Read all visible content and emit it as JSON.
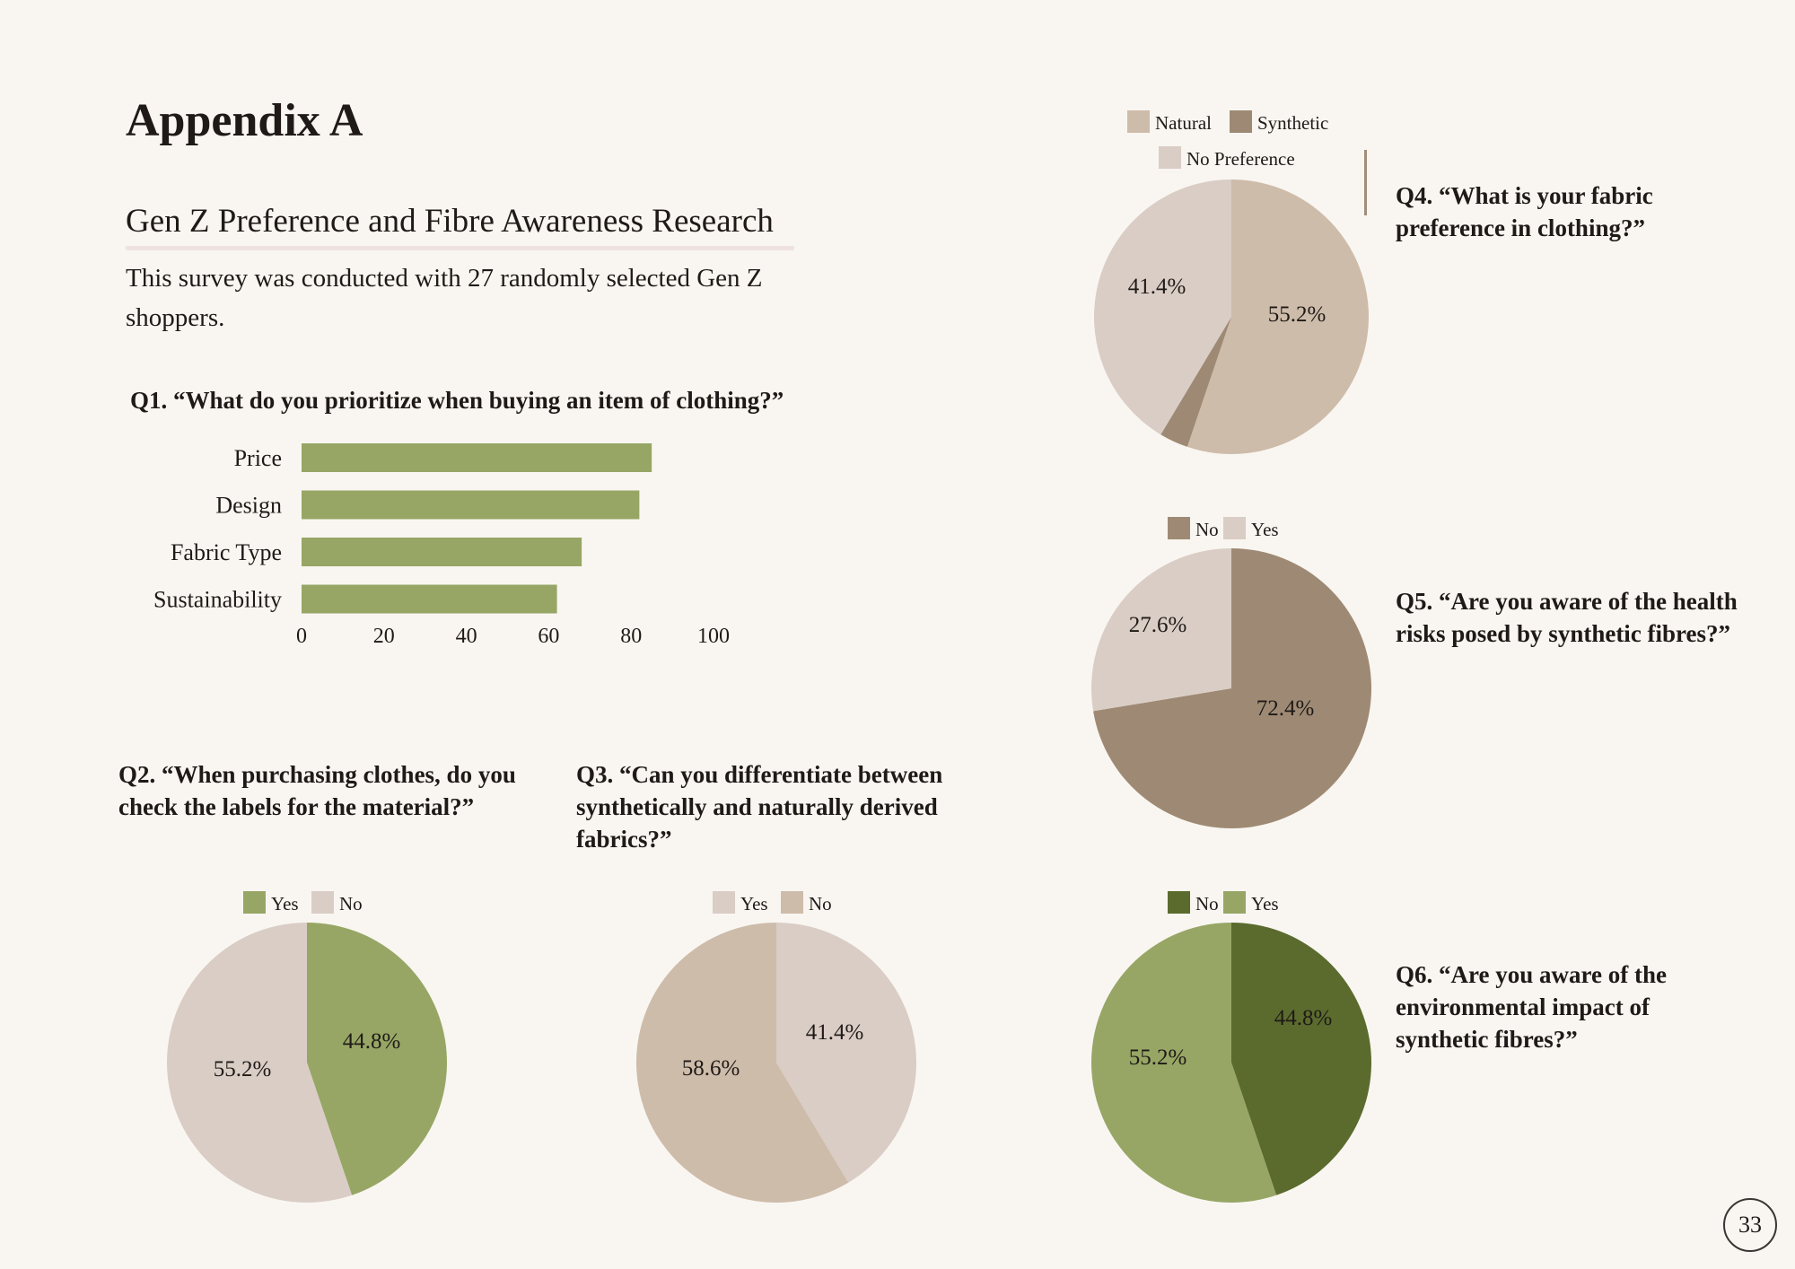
{
  "page": {
    "title": "Appendix A",
    "subtitle": "Gen Z Preference and Fibre Awareness Research",
    "intro": "This survey was conducted with 27 randomly selected Gen Z shoppers.",
    "page_number": "33"
  },
  "questions": {
    "q1": "Q1. “What do you prioritize when buying an item of clothing?”",
    "q2": "Q2. “When purchasing clothes, do you check the labels for the material?”",
    "q3": "Q3. “Can you differentiate between synthetically and naturally derived fabrics?”",
    "q4": "Q4. “What is your fabric preference in clothing?”",
    "q5": "Q5. “Are you aware of the health risks posed by synthetic fibres?”",
    "q6": "Q6. “Are you aware of the environmental impact of synthetic fibres?”"
  },
  "chart_data": [
    {
      "id": "q1",
      "type": "bar",
      "orientation": "horizontal",
      "categories": [
        "Price",
        "Design",
        "Fabric Type",
        "Sustainability"
      ],
      "values": [
        85,
        82,
        68,
        62
      ],
      "xlim": [
        0,
        100
      ],
      "xticks": [
        0,
        20,
        40,
        60,
        80,
        100
      ],
      "color": "#97a665"
    },
    {
      "id": "q2",
      "type": "pie",
      "legend": [
        "Yes",
        "No"
      ],
      "slices": [
        {
          "label": "Yes",
          "value": 44.8,
          "display": "44.8%",
          "color": "#97a665"
        },
        {
          "label": "No",
          "value": 55.2,
          "display": "55.2%",
          "color": "#dacdc6"
        }
      ]
    },
    {
      "id": "q3",
      "type": "pie",
      "legend": [
        "Yes",
        "No"
      ],
      "slices": [
        {
          "label": "Yes",
          "value": 41.4,
          "display": "41.4%",
          "color": "#dacdc6"
        },
        {
          "label": "No",
          "value": 58.6,
          "display": "58.6%",
          "color": "#cebcaa"
        }
      ]
    },
    {
      "id": "q4",
      "type": "pie",
      "legend": [
        "Natural",
        "Synthetic",
        "No Preference"
      ],
      "slices": [
        {
          "label": "Natural",
          "value": 55.2,
          "display": "55.2%",
          "color": "#cebcaa"
        },
        {
          "label": "Synthetic",
          "value": 3.4,
          "display": "",
          "color": "#9e8a74"
        },
        {
          "label": "No Preference",
          "value": 41.4,
          "display": "41.4%",
          "color": "#dacdc6"
        }
      ]
    },
    {
      "id": "q5",
      "type": "pie",
      "legend": [
        "No",
        "Yes"
      ],
      "slices": [
        {
          "label": "No",
          "value": 72.4,
          "display": "72.4%",
          "color": "#9e8a74"
        },
        {
          "label": "Yes",
          "value": 27.6,
          "display": "27.6%",
          "color": "#dacdc6"
        }
      ]
    },
    {
      "id": "q6",
      "type": "pie",
      "legend": [
        "No",
        "Yes"
      ],
      "slices": [
        {
          "label": "No",
          "value": 44.8,
          "display": "44.8%",
          "color": "#5b6b2e"
        },
        {
          "label": "Yes",
          "value": 55.2,
          "display": "55.2%",
          "color": "#97a665"
        }
      ]
    }
  ]
}
